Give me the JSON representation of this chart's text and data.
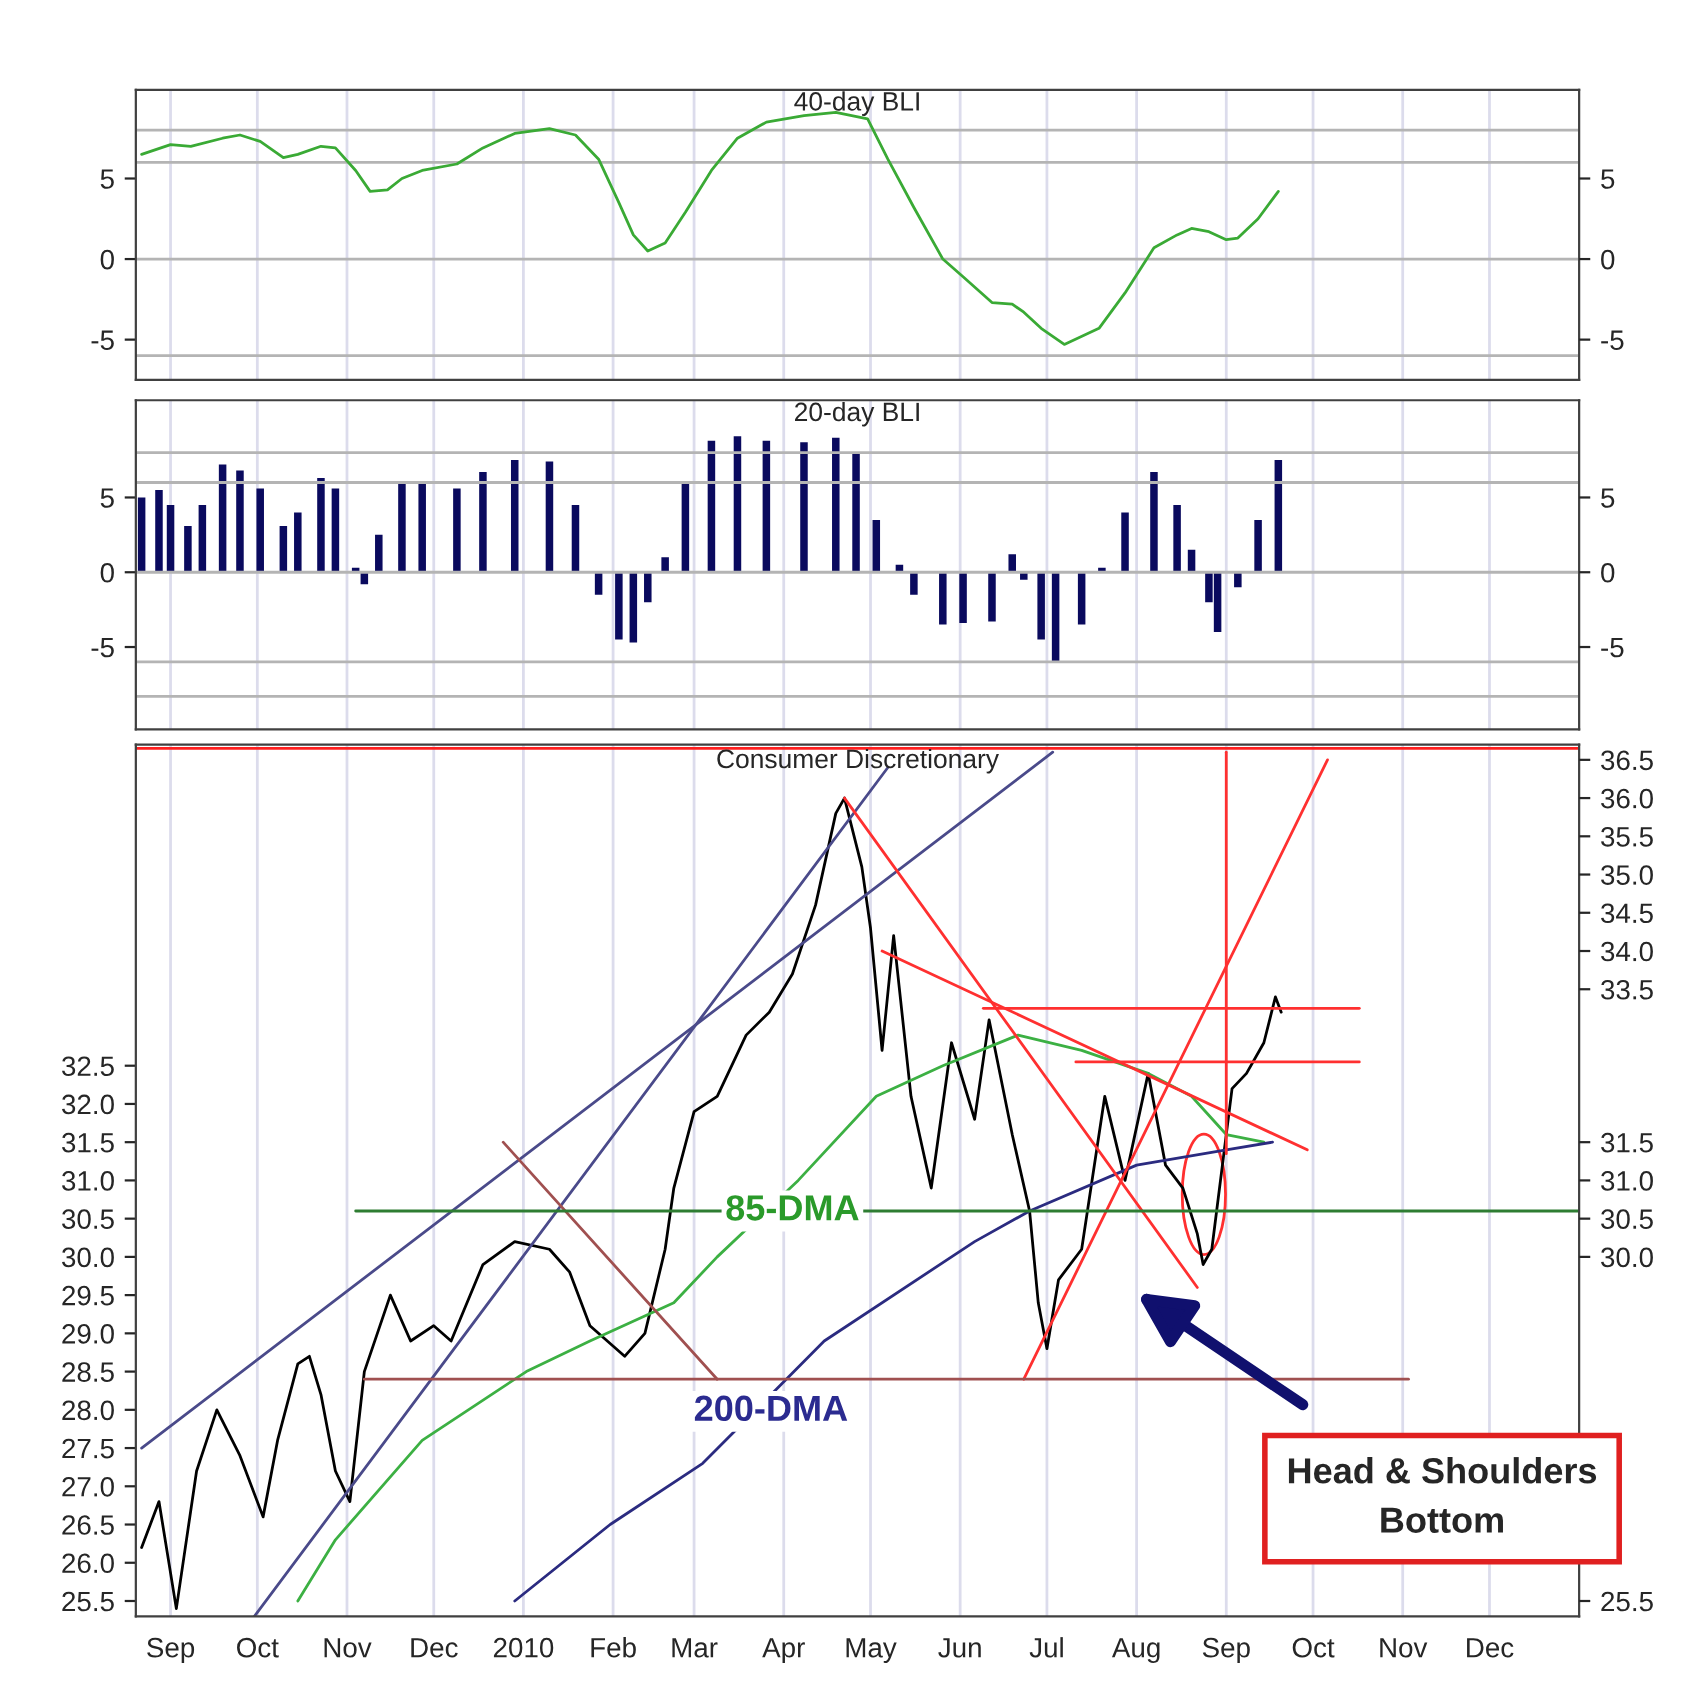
{
  "chart_data": [
    {
      "type": "line",
      "title": "40-day BLI",
      "grid": "x",
      "xlim": [
        "2009-08-20",
        "2011-01-01"
      ],
      "xticks": [
        {
          "value": "2009-09-01",
          "label": null
        },
        {
          "value": "2009-10-01",
          "label": null
        },
        {
          "value": "2009-11-01",
          "label": null
        },
        {
          "value": "2009-12-01",
          "label": null
        },
        {
          "value": "2010-01-01",
          "label": null
        },
        {
          "value": "2010-02-01",
          "label": null
        },
        {
          "value": "2010-03-01",
          "label": null
        },
        {
          "value": "2010-04-01",
          "label": null
        },
        {
          "value": "2010-05-01",
          "label": null
        },
        {
          "value": "2010-06-01",
          "label": null
        },
        {
          "value": "2010-07-01",
          "label": null
        },
        {
          "value": "2010-08-01",
          "label": null
        },
        {
          "value": "2010-09-01",
          "label": null
        },
        {
          "value": "2010-10-01",
          "label": null
        },
        {
          "value": "2010-11-01",
          "label": null
        },
        {
          "value": "2010-12-01",
          "label": null
        }
      ],
      "ylim": [
        -7.5,
        10.5
      ],
      "yticks": [
        5,
        0,
        -5
      ],
      "y2lim": [
        -7.5,
        10.5
      ],
      "y2ticks": [
        5,
        0,
        -5
      ],
      "tick_labels": "y",
      "ref_lines": [
        {
          "axis": "y",
          "value": 8,
          "color": "#b4b4b4"
        },
        {
          "axis": "y",
          "value": 6,
          "color": "#b4b4b4"
        },
        {
          "axis": "y",
          "value": 0,
          "color": "#b4b4b4"
        },
        {
          "axis": "y",
          "value": -6,
          "color": "#b4b4b4"
        }
      ],
      "series": [
        {
          "color": "#3aaa35",
          "x": [
            "2009-08-22",
            "2009-09-01",
            "2009-09-08",
            "2009-09-19",
            "2009-09-25",
            "2009-10-02",
            "2009-10-10",
            "2009-10-15",
            "2009-10-23",
            "2009-10-28",
            "2009-11-04",
            "2009-11-09",
            "2009-11-15",
            "2009-11-20",
            "2009-11-27",
            "2009-12-09",
            "2009-12-18",
            "2009-12-29",
            "2010-01-10",
            "2010-01-19",
            "2010-01-27",
            "2010-02-03",
            "2010-02-08",
            "2010-02-13",
            "2010-02-19",
            "2010-02-26",
            "2010-03-07",
            "2010-03-16",
            "2010-03-26",
            "2010-04-08",
            "2010-04-19",
            "2010-04-30",
            "2010-05-07",
            "2010-05-16",
            "2010-05-26",
            "2010-06-02",
            "2010-06-12",
            "2010-06-19",
            "2010-06-23",
            "2010-06-29",
            "2010-07-07",
            "2010-07-19",
            "2010-07-28",
            "2010-08-07",
            "2010-08-15",
            "2010-08-20",
            "2010-08-26",
            "2010-09-01",
            "2010-09-05",
            "2010-09-12",
            "2010-09-19"
          ],
          "values": [
            6.5,
            7.1,
            7.0,
            7.5,
            7.7,
            7.3,
            6.3,
            6.5,
            7.0,
            6.9,
            5.5,
            4.2,
            4.3,
            5.0,
            5.5,
            5.9,
            6.9,
            7.8,
            8.1,
            7.7,
            6.2,
            3.5,
            1.5,
            0.5,
            1.0,
            2.9,
            5.5,
            7.5,
            8.5,
            8.9,
            9.1,
            8.7,
            6.2,
            3.2,
            0.0,
            -1.1,
            -2.7,
            -2.8,
            -3.3,
            -4.3,
            -5.3,
            -4.3,
            -2.1,
            0.7,
            1.5,
            1.9,
            1.7,
            1.2,
            1.3,
            2.5,
            4.2
          ]
        }
      ]
    },
    {
      "type": "bar",
      "title": "20-day BLI",
      "grid": "x",
      "xlim": [
        "2009-08-20",
        "2011-01-01"
      ],
      "xticks": [
        {
          "value": "2009-09-01",
          "label": null
        },
        {
          "value": "2009-10-01",
          "label": null
        },
        {
          "value": "2009-11-01",
          "label": null
        },
        {
          "value": "2009-12-01",
          "label": null
        },
        {
          "value": "2010-01-01",
          "label": null
        },
        {
          "value": "2010-02-01",
          "label": null
        },
        {
          "value": "2010-03-01",
          "label": null
        },
        {
          "value": "2010-04-01",
          "label": null
        },
        {
          "value": "2010-05-01",
          "label": null
        },
        {
          "value": "2010-06-01",
          "label": null
        },
        {
          "value": "2010-07-01",
          "label": null
        },
        {
          "value": "2010-08-01",
          "label": null
        },
        {
          "value": "2010-09-01",
          "label": null
        },
        {
          "value": "2010-10-01",
          "label": null
        },
        {
          "value": "2010-11-01",
          "label": null
        },
        {
          "value": "2010-12-01",
          "label": null
        }
      ],
      "ylim": [
        -10.5,
        11.5
      ],
      "yticks": [
        5,
        0,
        -5
      ],
      "y2lim": [
        -10.5,
        11.5
      ],
      "y2ticks": [
        5,
        0,
        -5
      ],
      "tick_labels": "y",
      "ref_lines": [
        {
          "axis": "y",
          "value": 8,
          "color": "#b4b4b4"
        },
        {
          "axis": "y",
          "value": 6,
          "color": "#b4b4b4"
        },
        {
          "axis": "y",
          "value": 0,
          "color": "#b4b4b4"
        },
        {
          "axis": "y",
          "value": -6,
          "color": "#b4b4b4"
        },
        {
          "axis": "y",
          "value": -8.3,
          "color": "#b4b4b4"
        }
      ],
      "series": [
        {
          "color": "#0a0a5e",
          "x": [
            "2009-08-22",
            "2009-08-28",
            "2009-09-01",
            "2009-09-07",
            "2009-09-12",
            "2009-09-19",
            "2009-09-25",
            "2009-10-02",
            "2009-10-10",
            "2009-10-15",
            "2009-10-23",
            "2009-10-28",
            "2009-11-04",
            "2009-11-07",
            "2009-11-12",
            "2009-11-20",
            "2009-11-27",
            "2009-12-09",
            "2009-12-18",
            "2009-12-29",
            "2010-01-10",
            "2010-01-19",
            "2010-01-27",
            "2010-02-03",
            "2010-02-08",
            "2010-02-13",
            "2010-02-19",
            "2010-02-26",
            "2010-03-07",
            "2010-03-16",
            "2010-03-26",
            "2010-04-08",
            "2010-04-19",
            "2010-04-26",
            "2010-05-03",
            "2010-05-11",
            "2010-05-16",
            "2010-05-26",
            "2010-06-02",
            "2010-06-12",
            "2010-06-19",
            "2010-06-23",
            "2010-06-29",
            "2010-07-04",
            "2010-07-13",
            "2010-07-20",
            "2010-07-28",
            "2010-08-07",
            "2010-08-15",
            "2010-08-20",
            "2010-08-26",
            "2010-08-29",
            "2010-09-05",
            "2010-09-12",
            "2010-09-19"
          ],
          "values": [
            5.0,
            5.5,
            4.5,
            3.1,
            4.5,
            7.2,
            6.8,
            5.6,
            3.1,
            4.0,
            6.3,
            5.6,
            0.3,
            -0.8,
            2.5,
            5.9,
            5.9,
            5.6,
            6.7,
            7.5,
            7.4,
            4.5,
            -1.5,
            -4.5,
            -4.7,
            -2.0,
            1.0,
            6.0,
            8.8,
            9.1,
            8.8,
            8.7,
            9.0,
            8.0,
            3.5,
            0.5,
            -1.5,
            -3.5,
            -3.4,
            -3.3,
            1.2,
            -0.5,
            -4.5,
            -6.0,
            -3.5,
            0.3,
            4.0,
            6.7,
            4.5,
            1.5,
            -2.0,
            -4.0,
            -1.0,
            3.5,
            7.5
          ]
        }
      ]
    },
    {
      "type": "line",
      "title": "Consumer Discretionary",
      "grid": "x",
      "xlim": [
        "2009-08-20",
        "2011-01-01"
      ],
      "xticks": [
        {
          "value": "2009-09-01",
          "label": "Sep"
        },
        {
          "value": "2009-10-01",
          "label": "Oct"
        },
        {
          "value": "2009-11-01",
          "label": "Nov"
        },
        {
          "value": "2009-12-01",
          "label": "Dec"
        },
        {
          "value": "2010-01-01",
          "label": "2010"
        },
        {
          "value": "2010-02-01",
          "label": "Feb"
        },
        {
          "value": "2010-03-01",
          "label": "Mar"
        },
        {
          "value": "2010-04-01",
          "label": "Apr"
        },
        {
          "value": "2010-05-01",
          "label": "May"
        },
        {
          "value": "2010-06-01",
          "label": "Jun"
        },
        {
          "value": "2010-07-01",
          "label": "Jul"
        },
        {
          "value": "2010-08-01",
          "label": "Aug"
        },
        {
          "value": "2010-09-01",
          "label": "Sep"
        },
        {
          "value": "2010-10-01",
          "label": "Oct"
        },
        {
          "value": "2010-11-01",
          "label": "Nov"
        },
        {
          "value": "2010-12-01",
          "label": "Dec"
        }
      ],
      "ylim": [
        25.3,
        36.7
      ],
      "yticks": [
        25.5,
        {
          "value": 26,
          "label": "26.0"
        },
        26.5,
        {
          "value": 27,
          "label": "27.0"
        },
        27.5,
        {
          "value": 28,
          "label": "28.0"
        },
        28.5,
        {
          "value": 29,
          "label": "29.0"
        },
        29.5,
        {
          "value": 30,
          "label": "30.0"
        },
        30.5,
        {
          "value": 31,
          "label": "31.0"
        },
        31.5,
        {
          "value": 32,
          "label": "32.0"
        },
        32.5
      ],
      "y2lim": [
        25.3,
        36.7
      ],
      "y2ticks": [
        25.5,
        {
          "value": 30,
          "label": "30.0"
        },
        30.5,
        {
          "value": 31,
          "label": "31.0"
        },
        31.5,
        33.5,
        {
          "value": 34,
          "label": "34.0"
        },
        34.5,
        {
          "value": 35,
          "label": "35.0"
        },
        35.5,
        {
          "value": 36,
          "label": "36.0"
        },
        36.5
      ],
      "ref_lines": [
        {
          "axis": "y",
          "value": 36.65,
          "color": "#ff2020"
        }
      ],
      "annotations": [
        {
          "text": "85-DMA",
          "x": "2010-04-04",
          "y": 30.6
        },
        "200-DMA",
        "Head & Shoulders\nBottom"
      ],
      "series": [
        {
          "color": "#000000",
          "x": [
            "2009-08-22",
            "2009-08-28",
            "2009-09-03",
            "2009-09-10",
            "2009-09-17",
            "2009-09-25",
            "2009-10-03",
            "2009-10-08",
            "2009-10-15",
            "2009-10-19",
            "2009-10-23",
            "2009-10-28",
            "2009-11-02",
            "2009-11-07",
            "2009-11-16",
            "2009-11-23",
            "2009-12-01",
            "2009-12-07",
            "2009-12-18",
            "2009-12-29",
            "2010-01-10",
            "2010-01-17",
            "2010-01-24",
            "2010-02-05",
            "2010-02-12",
            "2010-02-19",
            "2010-02-22",
            "2010-03-01",
            "2010-03-09",
            "2010-03-19",
            "2010-03-27",
            "2010-04-04",
            "2010-04-12",
            "2010-04-19",
            "2010-04-22",
            "2010-04-28",
            "2010-05-01",
            "2010-05-05",
            "2010-05-09",
            "2010-05-15",
            "2010-05-22",
            "2010-05-29",
            "2010-06-06",
            "2010-06-11",
            "2010-06-19",
            "2010-06-25",
            "2010-06-28",
            "2010-07-01",
            "2010-07-05",
            "2010-07-13",
            "2010-07-21",
            "2010-07-28",
            "2010-08-05",
            "2010-08-11",
            "2010-08-17",
            "2010-08-22",
            "2010-08-24",
            "2010-08-27",
            "2010-09-03",
            "2010-09-08",
            "2010-09-14",
            "2010-09-18",
            "2010-09-20"
          ],
          "values": [
            26.2,
            26.8,
            25.4,
            27.2,
            28.0,
            27.4,
            26.6,
            27.6,
            28.6,
            28.7,
            28.2,
            27.2,
            26.8,
            28.5,
            29.5,
            28.9,
            29.1,
            28.9,
            29.9,
            30.2,
            30.1,
            29.8,
            29.1,
            28.7,
            29.0,
            30.1,
            30.9,
            31.9,
            32.1,
            32.9,
            33.2,
            33.7,
            34.6,
            35.8,
            36.0,
            35.1,
            34.3,
            32.7,
            34.2,
            32.1,
            30.9,
            32.8,
            31.8,
            33.1,
            31.6,
            30.6,
            29.4,
            28.8,
            29.7,
            30.1,
            32.1,
            31.0,
            32.4,
            31.2,
            30.9,
            30.3,
            29.9,
            30.1,
            32.2,
            32.4,
            32.8,
            33.4,
            33.2
          ]
        },
        {
          "type": "line",
          "color": "#3cb043",
          "x": [
            "2009-10-15",
            "2009-10-28",
            "2009-11-27",
            "2010-01-02",
            "2010-01-24",
            "2010-02-22",
            "2010-03-09",
            "2010-04-06",
            "2010-05-03",
            "2010-05-26",
            "2010-06-21",
            "2010-07-13",
            "2010-08-05",
            "2010-08-20",
            "2010-09-01",
            "2010-09-14"
          ],
          "values": [
            25.5,
            26.3,
            27.6,
            28.5,
            28.9,
            29.4,
            30.0,
            31.0,
            32.1,
            32.5,
            32.9,
            32.7,
            32.4,
            32.1,
            31.6,
            31.5
          ]
        },
        {
          "type": "line",
          "color": "#2b2b80",
          "x": [
            "2009-12-29",
            "2010-01-31",
            "2010-03-04",
            "2010-04-15",
            "2010-06-06",
            "2010-06-25",
            "2010-08-01",
            "2010-09-01",
            "2010-09-17"
          ],
          "values": [
            25.5,
            26.5,
            27.3,
            28.9,
            30.2,
            30.6,
            31.2,
            31.4,
            31.5
          ]
        },
        {
          "type": "line",
          "color": "#4a4a8a",
          "x": [
            "2009-08-22",
            "2010-07-03"
          ],
          "values": [
            27.5,
            36.6
          ]
        },
        {
          "type": "line",
          "color": "#4a4a8a",
          "x": [
            "2009-09-30",
            "2010-05-07"
          ],
          "values": [
            25.3,
            36.4
          ]
        },
        {
          "type": "line",
          "color": "#ff3030",
          "x": [
            "2010-04-22",
            "2010-08-22"
          ],
          "values": [
            36.0,
            29.6
          ]
        },
        {
          "type": "line",
          "color": "#ff3030",
          "x": [
            "2010-05-05",
            "2010-09-29"
          ],
          "values": [
            34.0,
            31.4
          ]
        },
        {
          "type": "line",
          "color": "#ff3030",
          "x": [
            "2010-06-23",
            "2010-10-06"
          ],
          "values": [
            28.4,
            36.5
          ]
        },
        {
          "type": "line",
          "color": "#ff3030",
          "x": [
            "2010-06-09",
            "2010-10-17"
          ],
          "values": [
            33.25,
            33.25
          ]
        },
        {
          "type": "line",
          "color": "#ff3030",
          "x": [
            "2010-07-11",
            "2010-10-17"
          ],
          "values": [
            32.55,
            32.55
          ]
        },
        {
          "type": "line",
          "color": "#ff3030",
          "x": [
            "2010-09-01",
            "2010-09-01"
          ],
          "values": [
            36.6,
            31.35
          ]
        },
        {
          "type": "line",
          "color": "#a05050",
          "x": [
            "2009-11-07",
            "2010-11-03"
          ],
          "values": [
            28.4,
            28.4
          ]
        },
        {
          "type": "line",
          "color": "#a05050",
          "x": [
            "2009-12-25",
            "2010-03-09"
          ],
          "values": [
            31.5,
            28.4
          ]
        },
        {
          "type": "line",
          "color": "#2e7d32",
          "x": [
            "2009-11-04",
            "2011-01-01"
          ],
          "values": [
            30.6,
            30.6
          ]
        }
      ]
    }
  ]
}
